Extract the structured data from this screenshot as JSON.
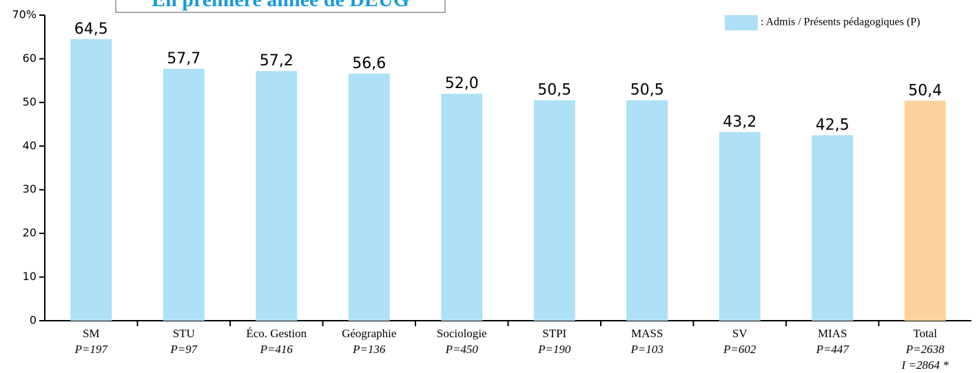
{
  "chart_data": {
    "type": "bar",
    "title": "En première année de DEUG",
    "categories": [
      "SM",
      "STU",
      "Éco. Gestion",
      "Géographie",
      "Sociologie",
      "STPI",
      "MASS",
      "SV",
      "MIAS",
      "Total"
    ],
    "category_counts": [
      "P=197",
      "P=97",
      "P=416",
      "P=136",
      "P=450",
      "P=190",
      "P=103",
      "P=602",
      "P=447",
      "P=2638"
    ],
    "total_note": "I =2864 *",
    "values": [
      64.5,
      57.7,
      57.2,
      56.6,
      52.0,
      50.5,
      50.5,
      43.2,
      42.5,
      50.4
    ],
    "value_labels": [
      "64,5",
      "57,7",
      "57,2",
      "56,6",
      "52,0",
      "50,5",
      "50,5",
      "43,2",
      "42,5",
      "50,4"
    ],
    "colors": [
      "#aee0f7",
      "#aee0f7",
      "#aee0f7",
      "#aee0f7",
      "#aee0f7",
      "#aee0f7",
      "#aee0f7",
      "#aee0f7",
      "#aee0f7",
      "#fdd19c"
    ],
    "legend": {
      "label": ": Admis / Présents pédagogiques (P)",
      "color": "#aee0f7"
    },
    "legend_position": "top-right",
    "ylim": [
      0,
      70
    ],
    "yticks": [
      0,
      10,
      20,
      30,
      40,
      50,
      60,
      {
        "value": 70,
        "label": "70%"
      }
    ]
  }
}
